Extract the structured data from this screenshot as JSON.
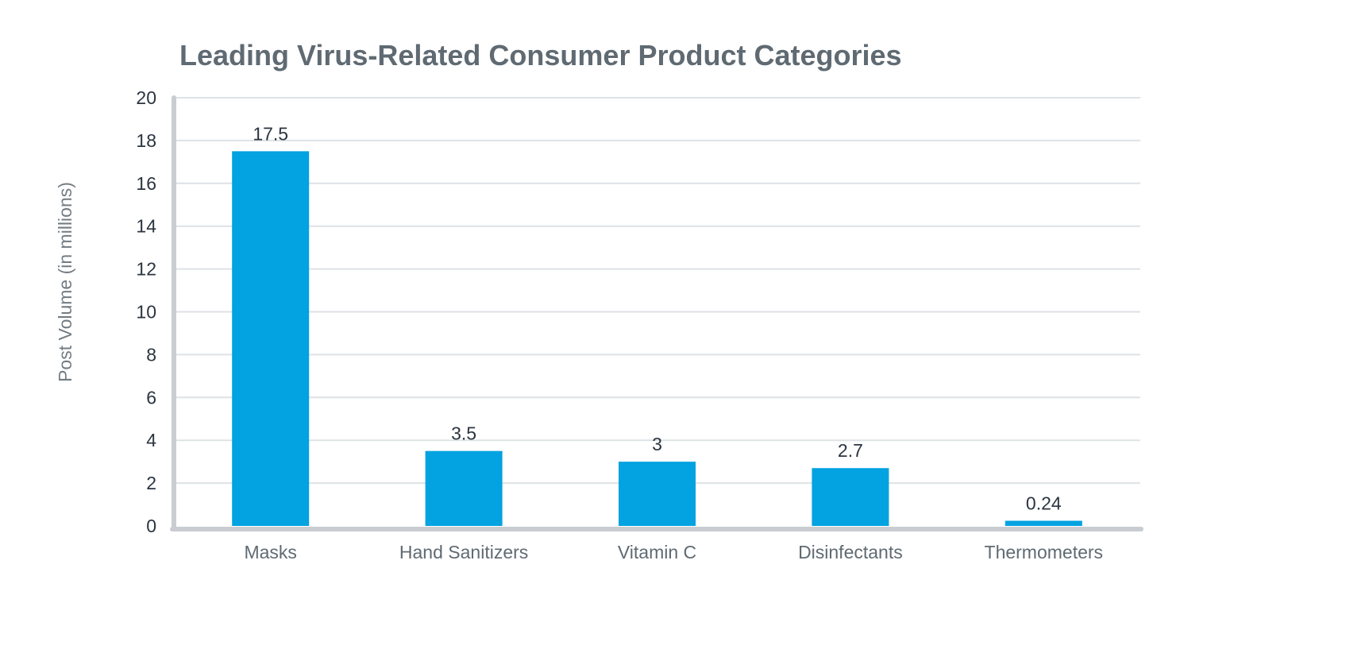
{
  "chart_data": {
    "type": "bar",
    "title": "Leading Virus-Related Consumer Product Categories",
    "xlabel": "",
    "ylabel": "Post Volume (in millions)",
    "categories": [
      "Masks",
      "Hand Sanitizers",
      "Vitamin C",
      "Disinfectants",
      "Thermometers"
    ],
    "values": [
      17.5,
      3.5,
      3,
      2.7,
      0.24
    ],
    "data_labels": [
      "17.5",
      "3.5",
      "3",
      "2.7",
      "0.24"
    ],
    "ylim": [
      0,
      20
    ],
    "yticks": [
      0,
      2,
      4,
      6,
      8,
      10,
      12,
      14,
      16,
      18,
      20
    ],
    "grid": true,
    "legend": "none",
    "colors": {
      "bar": "#03a2e0",
      "grid": "#dde2e6",
      "axis": "#c9cdd1"
    }
  }
}
